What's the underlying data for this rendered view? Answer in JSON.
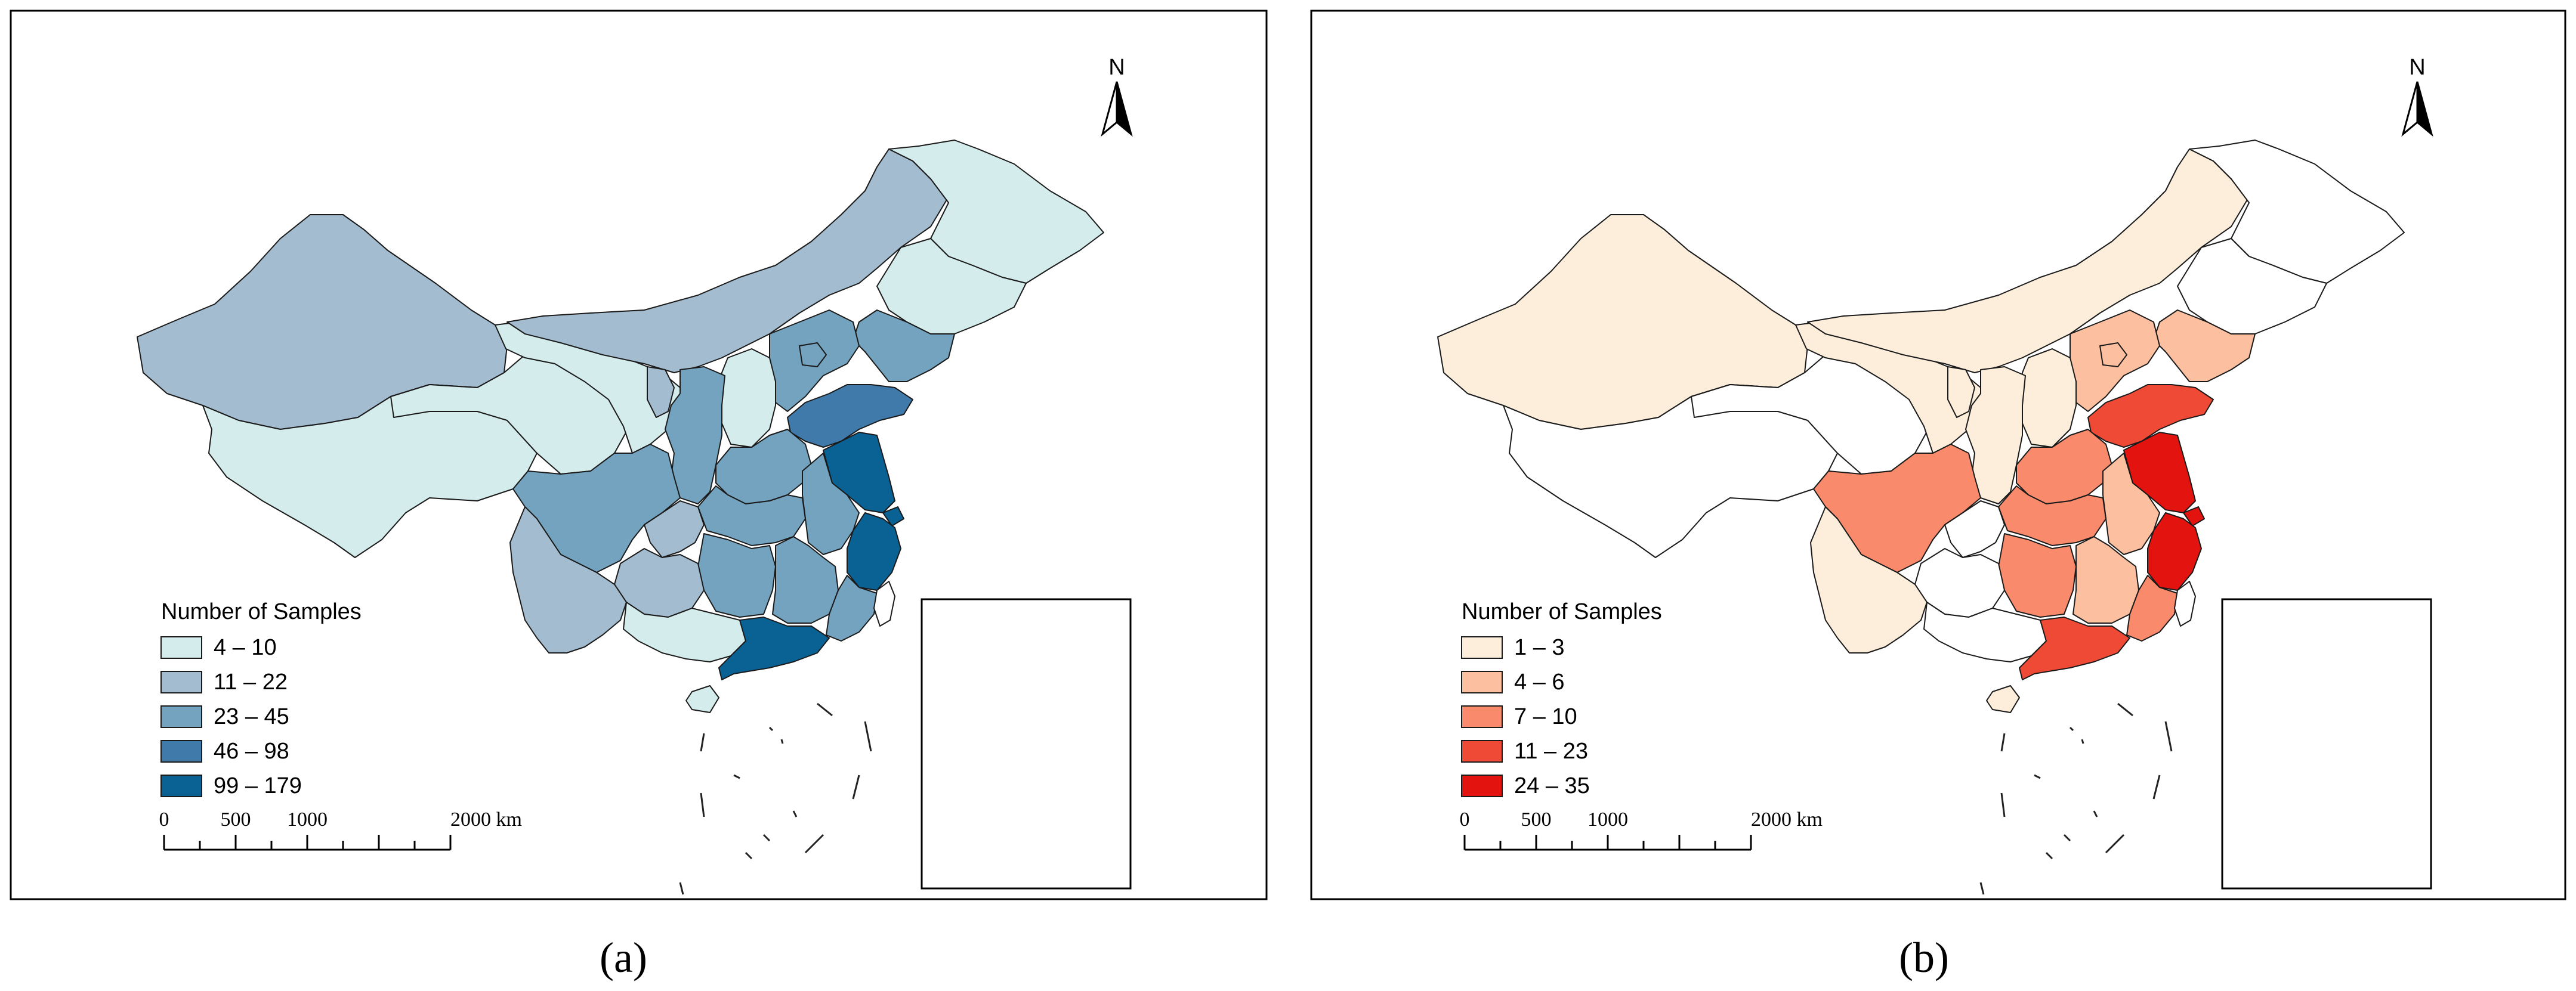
{
  "panels": [
    {
      "caption": "(a)",
      "legend_title": "Number of Samples",
      "legend": [
        {
          "label": "4 – 10",
          "color": "#d4ecec"
        },
        {
          "label": "11 – 22",
          "color": "#a3bccf"
        },
        {
          "label": "23 – 45",
          "color": "#74a3bf"
        },
        {
          "label": "46 – 98",
          "color": "#3f7aab"
        },
        {
          "label": "99 – 179",
          "color": "#0a6194"
        }
      ],
      "scale_labels": [
        "0",
        "500",
        "1000",
        "2000 km"
      ],
      "north_label": "N",
      "colors": {
        "xinjiang": "#a3bccf",
        "tibet": "#d4ecec",
        "qinghai": "#d4ecec",
        "gansu": "#d4ecec",
        "inner_mongolia": "#a3bccf",
        "heilongjiang": "#d4ecec",
        "jilin": "#d4ecec",
        "liaoning": "#74a3bf",
        "hebei": "#74a3bf",
        "beijing": "#74a3bf",
        "shanxi": "#d4ecec",
        "shaanxi": "#74a3bf",
        "ningxia": "#a3bccf",
        "shandong": "#3f7aab",
        "henan": "#74a3bf",
        "jiangsu": "#0a6194",
        "shanghai": "#0a6194",
        "anhui": "#74a3bf",
        "zhejiang": "#0a6194",
        "sichuan": "#74a3bf",
        "chongqing": "#a3bccf",
        "hubei": "#74a3bf",
        "hunan": "#74a3bf",
        "jiangxi": "#74a3bf",
        "fujian": "#74a3bf",
        "guizhou": "#a3bccf",
        "yunnan": "#a3bccf",
        "guangxi": "#d4ecec",
        "guangdong": "#0a6194",
        "hainan": "#d4ecec",
        "taiwan": "#ffffff"
      }
    },
    {
      "caption": "(b)",
      "legend_title": "Number of Samples",
      "legend": [
        {
          "label": "1 – 3",
          "color": "#fdeedc"
        },
        {
          "label": "4 – 6",
          "color": "#fcbf9f"
        },
        {
          "label": "7 – 10",
          "color": "#f98a6b"
        },
        {
          "label": "11 – 23",
          "color": "#ef4a35"
        },
        {
          "label": "24 – 35",
          "color": "#e3130f"
        }
      ],
      "scale_labels": [
        "0",
        "500",
        "1000",
        "2000 km"
      ],
      "north_label": "N",
      "colors": {
        "xinjiang": "#fdeedc",
        "tibet": "#ffffff",
        "qinghai": "#ffffff",
        "gansu": "#fdeedc",
        "inner_mongolia": "#fdeedc",
        "heilongjiang": "#ffffff",
        "jilin": "#ffffff",
        "liaoning": "#fcbf9f",
        "hebei": "#fcbf9f",
        "beijing": "#fcbf9f",
        "shanxi": "#fdeedc",
        "shaanxi": "#fdeedc",
        "ningxia": "#fdeedc",
        "shandong": "#ef4a35",
        "henan": "#f98a6b",
        "jiangsu": "#e3130f",
        "shanghai": "#e3130f",
        "anhui": "#fcbf9f",
        "zhejiang": "#e3130f",
        "sichuan": "#f98a6b",
        "chongqing": "#ffffff",
        "hubei": "#f98a6b",
        "hunan": "#f98a6b",
        "jiangxi": "#fcbf9f",
        "fujian": "#f98a6b",
        "guizhou": "#ffffff",
        "yunnan": "#fdeedc",
        "guangxi": "#ffffff",
        "guangdong": "#ef4a35",
        "hainan": "#fdeedc",
        "taiwan": "#ffffff"
      }
    }
  ]
}
